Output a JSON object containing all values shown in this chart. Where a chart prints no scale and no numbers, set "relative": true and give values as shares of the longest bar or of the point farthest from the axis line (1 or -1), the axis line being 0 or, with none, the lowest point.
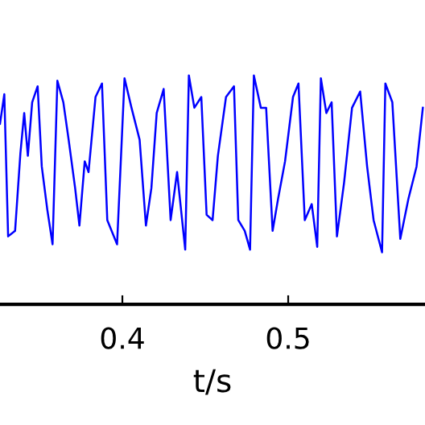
{
  "chart_data": {
    "type": "line",
    "relative": true,
    "xlabel": "t/s",
    "xlim": [
      0.3262,
      0.5825
    ],
    "xticks": [
      0.4,
      0.5
    ],
    "tick_labels": "x",
    "grid": false,
    "legend": false,
    "series": [
      {
        "color": "#0000ff",
        "x": [
          0.3262,
          0.3288,
          0.3311,
          0.3353,
          0.3385,
          0.3408,
          0.343,
          0.3456,
          0.3489,
          0.3514,
          0.3547,
          0.3579,
          0.3608,
          0.3644,
          0.3676,
          0.3715,
          0.3741,
          0.3773,
          0.3796,
          0.3838,
          0.3877,
          0.3909,
          0.3968,
          0.4013,
          0.4055,
          0.4104,
          0.4142,
          0.4175,
          0.4207,
          0.4249,
          0.4291,
          0.433,
          0.4379,
          0.4401,
          0.4434,
          0.4476,
          0.4508,
          0.4544,
          0.4576,
          0.4625,
          0.4673,
          0.4699,
          0.4738,
          0.477,
          0.4793,
          0.4835,
          0.4867,
          0.4906,
          0.4939,
          0.4981,
          0.5029,
          0.5062,
          0.51,
          0.5142,
          0.5175,
          0.5197,
          0.523,
          0.5262,
          0.5294,
          0.5337,
          0.5385,
          0.5434,
          0.5476,
          0.5515,
          0.5566,
          0.5586,
          0.5628,
          0.5676,
          0.5725,
          0.5774,
          0.5812
        ],
        "values": [
          0.789,
          0.918,
          0.297,
          0.321,
          0.66,
          0.836,
          0.649,
          0.883,
          0.953,
          0.602,
          0.415,
          0.262,
          0.977,
          0.883,
          0.719,
          0.508,
          0.344,
          0.625,
          0.578,
          0.906,
          0.965,
          0.368,
          0.262,
          0.988,
          0.859,
          0.719,
          0.344,
          0.508,
          0.836,
          0.941,
          0.368,
          0.578,
          0.239,
          1.0,
          0.859,
          0.906,
          0.391,
          0.368,
          0.649,
          0.906,
          0.953,
          0.368,
          0.321,
          0.239,
          1.0,
          0.859,
          0.859,
          0.321,
          0.461,
          0.625,
          0.906,
          0.965,
          0.368,
          0.438,
          0.251,
          0.988,
          0.836,
          0.883,
          0.297,
          0.532,
          0.859,
          0.93,
          0.602,
          0.368,
          0.227,
          0.965,
          0.883,
          0.286,
          0.461,
          0.602,
          0.859
        ]
      }
    ]
  }
}
